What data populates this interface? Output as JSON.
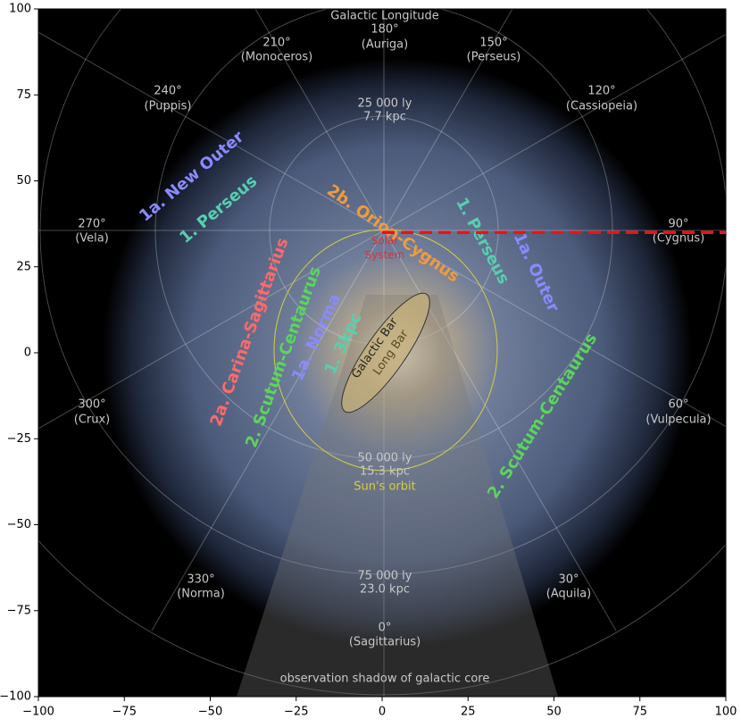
{
  "chart_data": {
    "type": "line",
    "x": [
      0,
      100
    ],
    "series": [
      {
        "values": [
          35,
          35
        ],
        "color": "#ee1111",
        "dashed": true
      }
    ],
    "xlim": [
      -100,
      100
    ],
    "ylim": [
      -100,
      100
    ],
    "xticks": [
      {
        "value": -100,
        "label": "−100"
      },
      {
        "value": -75,
        "label": "−75"
      },
      {
        "value": -50,
        "label": "−50"
      },
      {
        "value": -25,
        "label": "−25"
      },
      0,
      25,
      50,
      75,
      100
    ],
    "yticks": [
      {
        "value": -100,
        "label": "−100"
      },
      {
        "value": -75,
        "label": "−75"
      },
      {
        "value": -50,
        "label": "−50"
      },
      {
        "value": -25,
        "label": "−25"
      },
      0,
      25,
      50,
      75,
      100
    ],
    "grid": false,
    "image_labels": [
      "Galactic Longitude",
      "180°",
      "(Auriga)",
      "210°",
      "(Monoceros)",
      "150°",
      "(Perseus)",
      "240°",
      "(Puppis)",
      "120°",
      "(Cassiopeia)",
      "25 000 ly",
      "7.7 kpc",
      "270°",
      "(Vela)",
      "90°",
      "(Cygnus)",
      "300°",
      "(Crux)",
      "60°",
      "(Vulpecula)",
      "50 000 ly",
      "15.3 kpc",
      "Sun's orbit",
      "330°",
      "(Norma)",
      "30°",
      "(Aquila)",
      "75 000 ly",
      "23.0 kpc",
      "0°",
      "(Sagittarius)",
      "observation shadow of galactic core",
      "Solar",
      "System",
      "1a. New Outer",
      "1. Perseus",
      "2b. Orion-Cygnus",
      "1. Perseus",
      "1a. Outer",
      "2a. Carina-Sagittarius",
      "2. Scutum-Centaurus",
      "1a. Norma",
      "1. 3kpc",
      "Galactic Bar",
      "Long Bar",
      "2. Scutum-Centaurus"
    ]
  }
}
